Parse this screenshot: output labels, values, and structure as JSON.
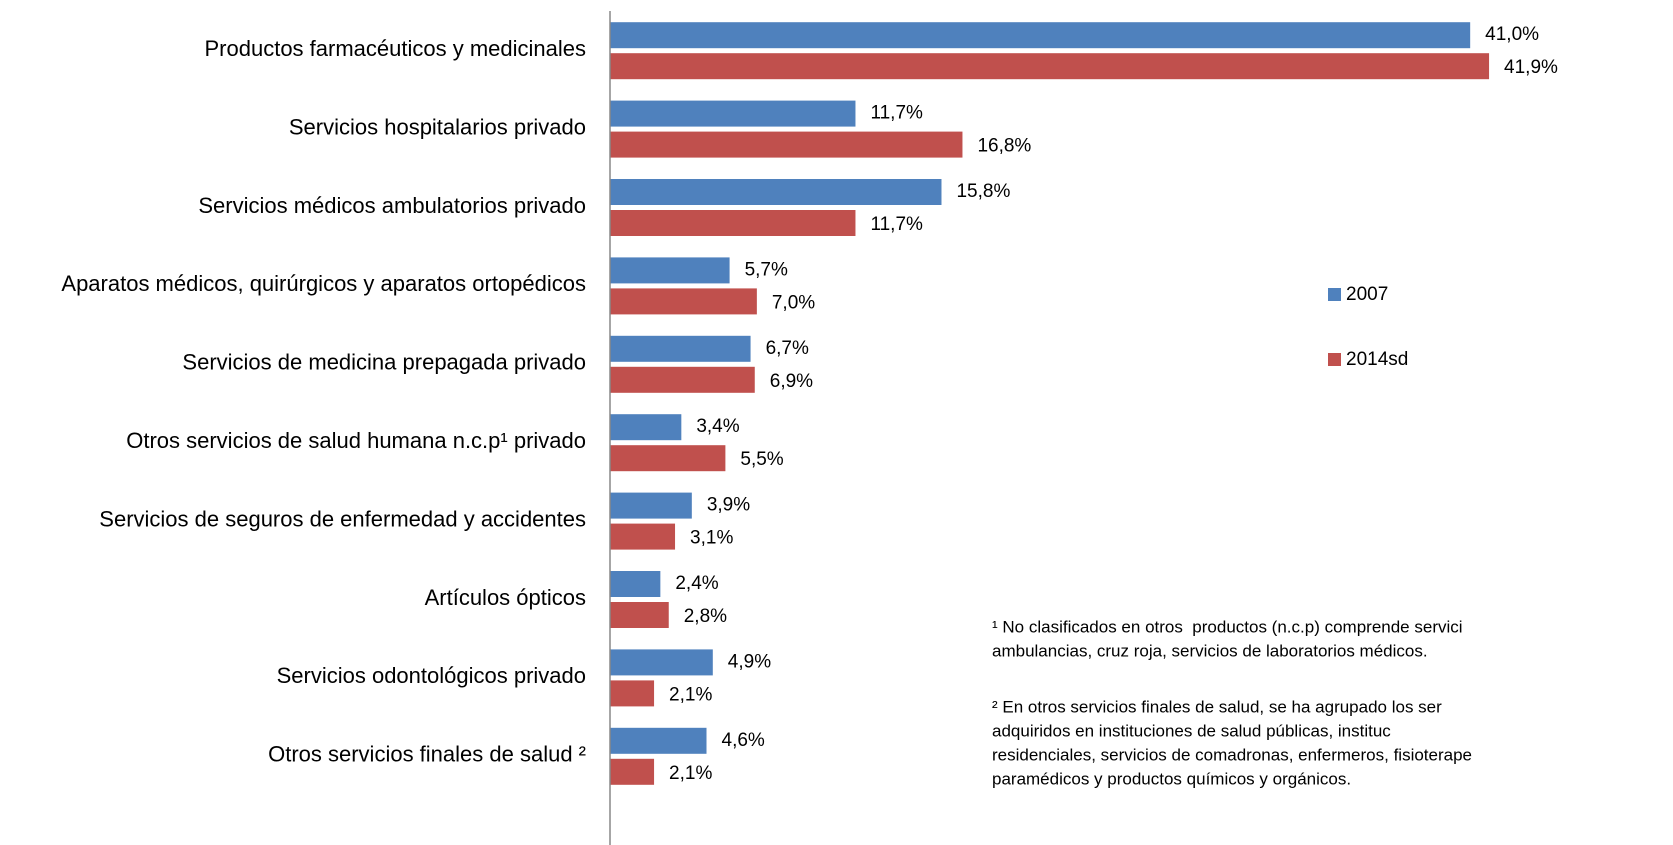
{
  "chart_data": {
    "type": "hbar",
    "categories": [
      "Productos farmacéuticos y medicinales",
      "Servicios hospitalarios privado",
      "Servicios médicos ambulatorios privado",
      "Aparatos médicos, quirúrgicos y aparatos ortopédicos",
      "Servicios de medicina prepagada privado",
      "Otros servicios de salud humana n.c.p¹ privado",
      "Servicios de seguros de enfermedad y accidentes",
      "Artículos ópticos",
      "Servicios odontológicos privado",
      "Otros servicios finales de salud ²"
    ],
    "series": [
      {
        "name": "2007",
        "color": "#4f81bd",
        "values": [
          41.0,
          11.7,
          15.8,
          5.7,
          6.7,
          3.4,
          3.9,
          2.4,
          4.9,
          4.6
        ],
        "value_labels": [
          "41,0%",
          "11,7%",
          "15,8%",
          "5,7%",
          "6,7%",
          "3,4%",
          "3,9%",
          "2,4%",
          "4,9%",
          "4,6%"
        ]
      },
      {
        "name": "2014sd",
        "color": "#c0504d",
        "values": [
          41.9,
          16.8,
          11.7,
          7.0,
          6.9,
          5.5,
          3.1,
          2.8,
          2.1,
          2.1
        ],
        "value_labels": [
          "41,9%",
          "16,8%",
          "11,7%",
          "7,0%",
          "6,9%",
          "5,5%",
          "3,1%",
          "2,8%",
          "2,1%",
          "2,1%"
        ]
      }
    ],
    "xlim": [
      0,
      50
    ],
    "legend": "right",
    "annotations": [
      [
        "¹ No clasificados en otros  productos (n.c.p) comprende servici",
        "ambulancias, cruz roja, servicios de laboratorios médicos."
      ],
      [
        "² En otros servicios finales de salud, se ha agrupado los ser",
        "adquiridos en instituciones de salud públicas, instituc",
        "residenciales, servicios de comadronas, enfermeros, fisioterape",
        "paramédicos y productos químicos y orgánicos."
      ]
    ]
  }
}
